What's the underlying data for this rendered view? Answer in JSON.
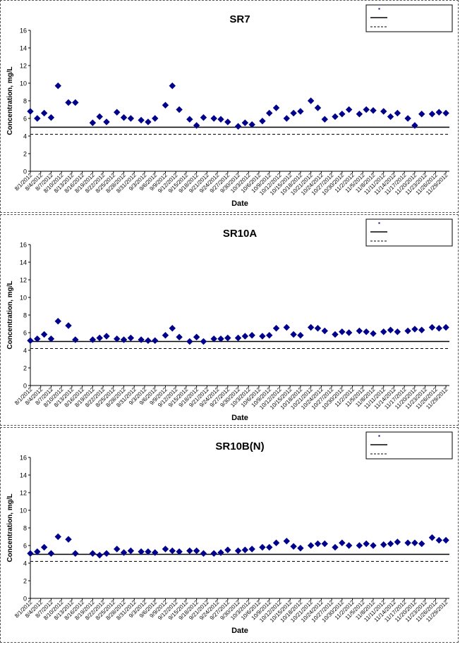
{
  "chart_data": [
    {
      "type": "scatter",
      "title": "SR7",
      "xlabel": "Date",
      "ylabel": "Concentration, mg/L",
      "ylim": [
        0,
        16
      ],
      "yticks": [
        0,
        2,
        4,
        6,
        8,
        10,
        12,
        14,
        16
      ],
      "grid": false,
      "legend_position": "top-right",
      "x_tick_labels": [
        "8/1/2012",
        "8/4/2012",
        "8/7/2012",
        "8/10/2012",
        "8/13/2012",
        "8/16/2012",
        "8/19/2012",
        "8/22/2012",
        "8/25/2012",
        "8/28/2012",
        "8/31/2012",
        "9/3/2012",
        "9/6/2012",
        "9/9/2012",
        "9/12/2012",
        "9/15/2012",
        "9/18/2012",
        "9/21/2012",
        "9/24/2012",
        "9/27/2012",
        "9/30/2012",
        "10/3/2012",
        "10/6/2012",
        "10/9/2012",
        "10/12/2012",
        "10/15/2012",
        "10/18/2012",
        "10/21/2012",
        "10/24/2012",
        "10/27/2012",
        "10/30/2012",
        "11/2/2012",
        "11/5/2012",
        "11/8/2012",
        "11/11/2012",
        "11/14/2012",
        "11/17/2012",
        "11/20/2012",
        "11/23/2012",
        "11/26/2012",
        "11/29/2012"
      ],
      "xlim": [
        "2012-08-01",
        "2012-11-30"
      ],
      "series": [
        {
          "name": "SR7",
          "marker": "diamond",
          "color": "#00008b",
          "x": [
            "2012-08-01",
            "2012-08-03",
            "2012-08-05",
            "2012-08-07",
            "2012-08-09",
            "2012-08-12",
            "2012-08-14",
            "2012-08-19",
            "2012-08-21",
            "2012-08-23",
            "2012-08-26",
            "2012-08-28",
            "2012-08-30",
            "2012-09-02",
            "2012-09-04",
            "2012-09-06",
            "2012-09-09",
            "2012-09-11",
            "2012-09-13",
            "2012-09-16",
            "2012-09-18",
            "2012-09-20",
            "2012-09-23",
            "2012-09-25",
            "2012-09-27",
            "2012-09-30",
            "2012-10-02",
            "2012-10-04",
            "2012-10-07",
            "2012-10-09",
            "2012-10-11",
            "2012-10-14",
            "2012-10-16",
            "2012-10-18",
            "2012-10-21",
            "2012-10-23",
            "2012-10-25",
            "2012-10-28",
            "2012-10-30",
            "2012-11-01",
            "2012-11-04",
            "2012-11-06",
            "2012-11-08",
            "2012-11-11",
            "2012-11-13",
            "2012-11-15",
            "2012-11-18",
            "2012-11-20",
            "2012-11-22",
            "2012-11-25",
            "2012-11-27",
            "2012-11-29"
          ],
          "y": [
            6.8,
            6.0,
            6.6,
            6.1,
            9.7,
            7.8,
            7.8,
            5.5,
            6.2,
            5.6,
            6.7,
            6.1,
            6.0,
            5.8,
            5.6,
            6.0,
            7.5,
            9.7,
            7.0,
            5.9,
            5.2,
            6.1,
            6.0,
            5.9,
            5.6,
            5.1,
            5.5,
            5.3,
            5.7,
            6.6,
            7.2,
            6.0,
            6.6,
            6.8,
            8.0,
            7.2,
            5.9,
            6.2,
            6.5,
            7.0,
            6.5,
            7.0,
            6.9,
            6.8,
            6.2,
            6.6,
            6.0,
            5.2,
            6.5,
            6.5,
            6.7,
            6.6
          ]
        }
      ],
      "reference_lines": [
        {
          "value": 5.0,
          "style": "solid"
        },
        {
          "value": 4.2,
          "style": "dashed"
        }
      ]
    },
    {
      "type": "scatter",
      "title": "SR10A",
      "xlabel": "Date",
      "ylabel": "Concentration, mg/L",
      "ylim": [
        0,
        16
      ],
      "yticks": [
        0,
        2,
        4,
        6,
        8,
        10,
        12,
        14,
        16
      ],
      "grid": false,
      "legend_position": "top-right",
      "x_tick_labels": [
        "8/1/2012",
        "8/4/2012",
        "8/7/2012",
        "8/10/2012",
        "8/13/2012",
        "8/16/2012",
        "8/19/2012",
        "8/22/2012",
        "8/25/2012",
        "8/28/2012",
        "8/31/2012",
        "9/3/2012",
        "9/6/2012",
        "9/9/2012",
        "9/12/2012",
        "9/15/2012",
        "9/18/2012",
        "9/21/2012",
        "9/24/2012",
        "9/27/2012",
        "9/30/2012",
        "10/3/2012",
        "10/6/2012",
        "10/9/2012",
        "10/12/2012",
        "10/15/2012",
        "10/18/2012",
        "10/21/2012",
        "10/24/2012",
        "10/27/2012",
        "10/30/2012",
        "11/2/2012",
        "11/5/2012",
        "11/8/2012",
        "11/11/2012",
        "11/14/2012",
        "11/17/2012",
        "11/20/2012",
        "11/23/2012",
        "11/26/2012",
        "11/29/2012"
      ],
      "xlim": [
        "2012-08-01",
        "2012-11-30"
      ],
      "series": [
        {
          "name": "SR10A",
          "marker": "diamond",
          "color": "#00008b",
          "x": [
            "2012-08-01",
            "2012-08-03",
            "2012-08-05",
            "2012-08-07",
            "2012-08-09",
            "2012-08-12",
            "2012-08-14",
            "2012-08-19",
            "2012-08-21",
            "2012-08-23",
            "2012-08-26",
            "2012-08-28",
            "2012-08-30",
            "2012-09-02",
            "2012-09-04",
            "2012-09-06",
            "2012-09-09",
            "2012-09-11",
            "2012-09-13",
            "2012-09-16",
            "2012-09-18",
            "2012-09-20",
            "2012-09-23",
            "2012-09-25",
            "2012-09-27",
            "2012-09-30",
            "2012-10-02",
            "2012-10-04",
            "2012-10-07",
            "2012-10-09",
            "2012-10-11",
            "2012-10-14",
            "2012-10-16",
            "2012-10-18",
            "2012-10-21",
            "2012-10-23",
            "2012-10-25",
            "2012-10-28",
            "2012-10-30",
            "2012-11-01",
            "2012-11-04",
            "2012-11-06",
            "2012-11-08",
            "2012-11-11",
            "2012-11-13",
            "2012-11-15",
            "2012-11-18",
            "2012-11-20",
            "2012-11-22",
            "2012-11-25",
            "2012-11-27",
            "2012-11-29"
          ],
          "y": [
            5.1,
            5.3,
            5.8,
            5.3,
            7.3,
            6.8,
            5.2,
            5.2,
            5.4,
            5.6,
            5.3,
            5.2,
            5.4,
            5.2,
            5.1,
            5.1,
            5.7,
            6.5,
            5.5,
            5.0,
            5.5,
            5.0,
            5.3,
            5.3,
            5.4,
            5.4,
            5.6,
            5.7,
            5.6,
            5.7,
            6.5,
            6.6,
            5.8,
            5.7,
            6.6,
            6.5,
            6.2,
            5.8,
            6.1,
            6.0,
            6.2,
            6.1,
            5.9,
            6.1,
            6.3,
            6.1,
            6.2,
            6.4,
            6.3,
            6.6,
            6.5,
            6.6
          ]
        }
      ],
      "reference_lines": [
        {
          "value": 5.0,
          "style": "solid"
        },
        {
          "value": 4.2,
          "style": "dashed"
        }
      ]
    },
    {
      "type": "scatter",
      "title": "SR10B(N)",
      "xlabel": "Date",
      "ylabel": "Concentration, mg/L",
      "ylim": [
        0,
        16
      ],
      "yticks": [
        0,
        2,
        4,
        6,
        8,
        10,
        12,
        14,
        16
      ],
      "grid": false,
      "legend_position": "top-right",
      "x_tick_labels": [
        "8/1/2012",
        "8/4/2012",
        "8/7/2012",
        "8/10/2012",
        "8/13/2012",
        "8/16/2012",
        "8/19/2012",
        "8/22/2012",
        "8/25/2012",
        "8/28/2012",
        "8/31/2012",
        "9/3/2012",
        "9/6/2012",
        "9/9/2012",
        "9/12/2012",
        "9/15/2012",
        "9/18/2012",
        "9/21/2012",
        "9/24/2012",
        "9/27/2012",
        "9/30/2012",
        "10/3/2012",
        "10/6/2012",
        "10/9/2012",
        "10/12/2012",
        "10/15/2012",
        "10/18/2012",
        "10/21/2012",
        "10/24/2012",
        "10/27/2012",
        "10/30/2012",
        "11/2/2012",
        "11/5/2012",
        "11/8/2012",
        "11/11/2012",
        "11/14/2012",
        "11/17/2012",
        "11/20/2012",
        "11/23/2012",
        "11/26/2012",
        "11/29/2012"
      ],
      "xlim": [
        "2012-08-01",
        "2012-11-30"
      ],
      "series": [
        {
          "name": "SR10B(N)",
          "marker": "diamond",
          "color": "#00008b",
          "x": [
            "2012-08-01",
            "2012-08-03",
            "2012-08-05",
            "2012-08-07",
            "2012-08-09",
            "2012-08-12",
            "2012-08-14",
            "2012-08-19",
            "2012-08-21",
            "2012-08-23",
            "2012-08-26",
            "2012-08-28",
            "2012-08-30",
            "2012-09-02",
            "2012-09-04",
            "2012-09-06",
            "2012-09-09",
            "2012-09-11",
            "2012-09-13",
            "2012-09-16",
            "2012-09-18",
            "2012-09-20",
            "2012-09-23",
            "2012-09-25",
            "2012-09-27",
            "2012-09-30",
            "2012-10-02",
            "2012-10-04",
            "2012-10-07",
            "2012-10-09",
            "2012-10-11",
            "2012-10-14",
            "2012-10-16",
            "2012-10-18",
            "2012-10-21",
            "2012-10-23",
            "2012-10-25",
            "2012-10-28",
            "2012-10-30",
            "2012-11-01",
            "2012-11-04",
            "2012-11-06",
            "2012-11-08",
            "2012-11-11",
            "2012-11-13",
            "2012-11-15",
            "2012-11-18",
            "2012-11-20",
            "2012-11-22",
            "2012-11-25",
            "2012-11-27",
            "2012-11-29"
          ],
          "y": [
            5.1,
            5.3,
            5.8,
            5.1,
            7.0,
            6.7,
            5.1,
            5.1,
            4.9,
            5.1,
            5.6,
            5.2,
            5.4,
            5.3,
            5.3,
            5.2,
            5.6,
            5.4,
            5.3,
            5.4,
            5.4,
            5.1,
            5.1,
            5.2,
            5.5,
            5.4,
            5.5,
            5.6,
            5.8,
            5.8,
            6.3,
            6.5,
            5.9,
            5.7,
            6.0,
            6.2,
            6.2,
            5.8,
            6.3,
            6.0,
            6.0,
            6.2,
            6.0,
            6.1,
            6.2,
            6.4,
            6.3,
            6.3,
            6.2,
            6.9,
            6.6,
            6.6
          ]
        }
      ],
      "reference_lines": [
        {
          "value": 5.0,
          "style": "solid"
        },
        {
          "value": 4.2,
          "style": "dashed"
        }
      ]
    }
  ]
}
